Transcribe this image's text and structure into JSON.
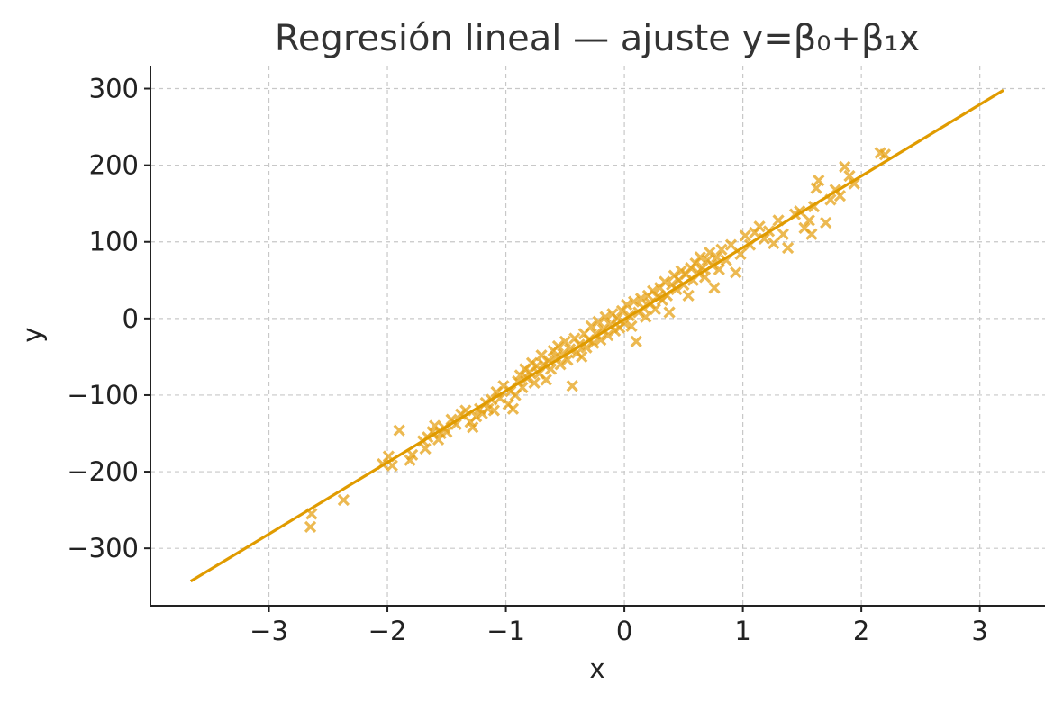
{
  "chart_data": {
    "type": "scatter",
    "title": "Regresión lineal — ajuste y=β₀+β₁x",
    "xlabel": "x",
    "ylabel": "y",
    "xlim": [
      -4.0,
      3.55
    ],
    "ylim": [
      -375,
      330
    ],
    "xticks": [
      -3,
      -2,
      -1,
      0,
      1,
      2,
      3
    ],
    "xtick_labels": [
      "−3",
      "−2",
      "−1",
      "0",
      "1",
      "2",
      "3"
    ],
    "yticks": [
      -300,
      -200,
      -100,
      0,
      100,
      200,
      300
    ],
    "ytick_labels": [
      "−300",
      "−200",
      "−100",
      "0",
      "100",
      "200",
      "300"
    ],
    "grid": true,
    "colors": {
      "points": "#E6A117",
      "line": "#E09B00",
      "grid": "#c8c8c8",
      "axis": "#222222",
      "title": "#333333"
    },
    "fit_line": {
      "x": [
        -3.66,
        3.2
      ],
      "y": [
        -343,
        298
      ]
    },
    "series": [
      {
        "marker": "x",
        "points": [
          [
            -2.65,
            -272
          ],
          [
            -2.64,
            -255
          ],
          [
            -2.37,
            -237
          ],
          [
            -2.04,
            -190
          ],
          [
            -1.99,
            -180
          ],
          [
            -1.96,
            -192
          ],
          [
            -1.9,
            -146
          ],
          [
            -1.81,
            -185
          ],
          [
            -1.79,
            -178
          ],
          [
            -1.7,
            -160
          ],
          [
            -1.68,
            -170
          ],
          [
            -1.66,
            -155
          ],
          [
            -1.62,
            -148
          ],
          [
            -1.6,
            -140
          ],
          [
            -1.57,
            -158
          ],
          [
            -1.55,
            -150
          ],
          [
            -1.52,
            -143
          ],
          [
            -1.5,
            -148
          ],
          [
            -1.46,
            -132
          ],
          [
            -1.42,
            -138
          ],
          [
            -1.38,
            -125
          ],
          [
            -1.34,
            -120
          ],
          [
            -1.3,
            -135
          ],
          [
            -1.28,
            -142
          ],
          [
            -1.25,
            -128
          ],
          [
            -1.22,
            -118
          ],
          [
            -1.2,
            -124
          ],
          [
            -1.17,
            -110
          ],
          [
            -1.15,
            -118
          ],
          [
            -1.12,
            -106
          ],
          [
            -1.1,
            -120
          ],
          [
            -1.08,
            -96
          ],
          [
            -1.05,
            -104
          ],
          [
            -1.02,
            -88
          ],
          [
            -0.98,
            -112
          ],
          [
            -0.96,
            -95
          ],
          [
            -0.94,
            -118
          ],
          [
            -0.92,
            -100
          ],
          [
            -0.9,
            -82
          ],
          [
            -0.88,
            -74
          ],
          [
            -0.86,
            -90
          ],
          [
            -0.84,
            -66
          ],
          [
            -0.82,
            -78
          ],
          [
            -0.8,
            -70
          ],
          [
            -0.78,
            -58
          ],
          [
            -0.76,
            -84
          ],
          [
            -0.74,
            -62
          ],
          [
            -0.72,
            -72
          ],
          [
            -0.7,
            -48
          ],
          [
            -0.68,
            -60
          ],
          [
            -0.66,
            -80
          ],
          [
            -0.64,
            -55
          ],
          [
            -0.62,
            -66
          ],
          [
            -0.6,
            -42
          ],
          [
            -0.58,
            -50
          ],
          [
            -0.56,
            -36
          ],
          [
            -0.54,
            -60
          ],
          [
            -0.52,
            -46
          ],
          [
            -0.5,
            -30
          ],
          [
            -0.48,
            -54
          ],
          [
            -0.46,
            -40
          ],
          [
            -0.44,
            -88
          ],
          [
            -0.42,
            -26
          ],
          [
            -0.4,
            -45
          ],
          [
            -0.38,
            -34
          ],
          [
            -0.36,
            -50
          ],
          [
            -0.34,
            -20
          ],
          [
            -0.32,
            -38
          ],
          [
            -0.3,
            -28
          ],
          [
            -0.28,
            -10
          ],
          [
            -0.26,
            -32
          ],
          [
            -0.24,
            -20
          ],
          [
            -0.22,
            -4
          ],
          [
            -0.2,
            -28
          ],
          [
            -0.18,
            -14
          ],
          [
            -0.16,
            2
          ],
          [
            -0.14,
            -22
          ],
          [
            -0.12,
            -8
          ],
          [
            -0.1,
            6
          ],
          [
            -0.08,
            -16
          ],
          [
            -0.06,
            0
          ],
          [
            -0.04,
            -12
          ],
          [
            -0.02,
            10
          ],
          [
            0.0,
            -6
          ],
          [
            0.02,
            18
          ],
          [
            0.04,
            4
          ],
          [
            0.06,
            -10
          ],
          [
            0.08,
            22
          ],
          [
            0.1,
            -30
          ],
          [
            0.12,
            8
          ],
          [
            0.14,
            26
          ],
          [
            0.16,
            14
          ],
          [
            0.18,
            2
          ],
          [
            0.2,
            30
          ],
          [
            0.22,
            20
          ],
          [
            0.24,
            36
          ],
          [
            0.26,
            12
          ],
          [
            0.28,
            28
          ],
          [
            0.3,
            40
          ],
          [
            0.32,
            24
          ],
          [
            0.34,
            48
          ],
          [
            0.36,
            30
          ],
          [
            0.38,
            8
          ],
          [
            0.4,
            44
          ],
          [
            0.42,
            56
          ],
          [
            0.44,
            38
          ],
          [
            0.46,
            50
          ],
          [
            0.48,
            62
          ],
          [
            0.5,
            44
          ],
          [
            0.52,
            58
          ],
          [
            0.54,
            30
          ],
          [
            0.56,
            66
          ],
          [
            0.58,
            50
          ],
          [
            0.6,
            72
          ],
          [
            0.62,
            60
          ],
          [
            0.64,
            80
          ],
          [
            0.66,
            66
          ],
          [
            0.68,
            54
          ],
          [
            0.7,
            76
          ],
          [
            0.72,
            86
          ],
          [
            0.74,
            70
          ],
          [
            0.76,
            40
          ],
          [
            0.78,
            80
          ],
          [
            0.8,
            64
          ],
          [
            0.82,
            90
          ],
          [
            0.86,
            76
          ],
          [
            0.9,
            96
          ],
          [
            0.94,
            60
          ],
          [
            0.98,
            84
          ],
          [
            1.02,
            108
          ],
          [
            1.06,
            96
          ],
          [
            1.1,
            112
          ],
          [
            1.14,
            120
          ],
          [
            1.18,
            104
          ],
          [
            1.22,
            114
          ],
          [
            1.26,
            98
          ],
          [
            1.3,
            128
          ],
          [
            1.34,
            110
          ],
          [
            1.38,
            92
          ],
          [
            1.44,
            136
          ],
          [
            1.48,
            140
          ],
          [
            1.52,
            118
          ],
          [
            1.56,
            128
          ],
          [
            1.58,
            110
          ],
          [
            1.6,
            146
          ],
          [
            1.62,
            170
          ],
          [
            1.64,
            180
          ],
          [
            1.7,
            125
          ],
          [
            1.74,
            155
          ],
          [
            1.78,
            168
          ],
          [
            1.82,
            160
          ],
          [
            1.86,
            198
          ],
          [
            1.9,
            186
          ],
          [
            1.94,
            176
          ],
          [
            2.16,
            216
          ],
          [
            2.2,
            214
          ]
        ]
      }
    ]
  }
}
